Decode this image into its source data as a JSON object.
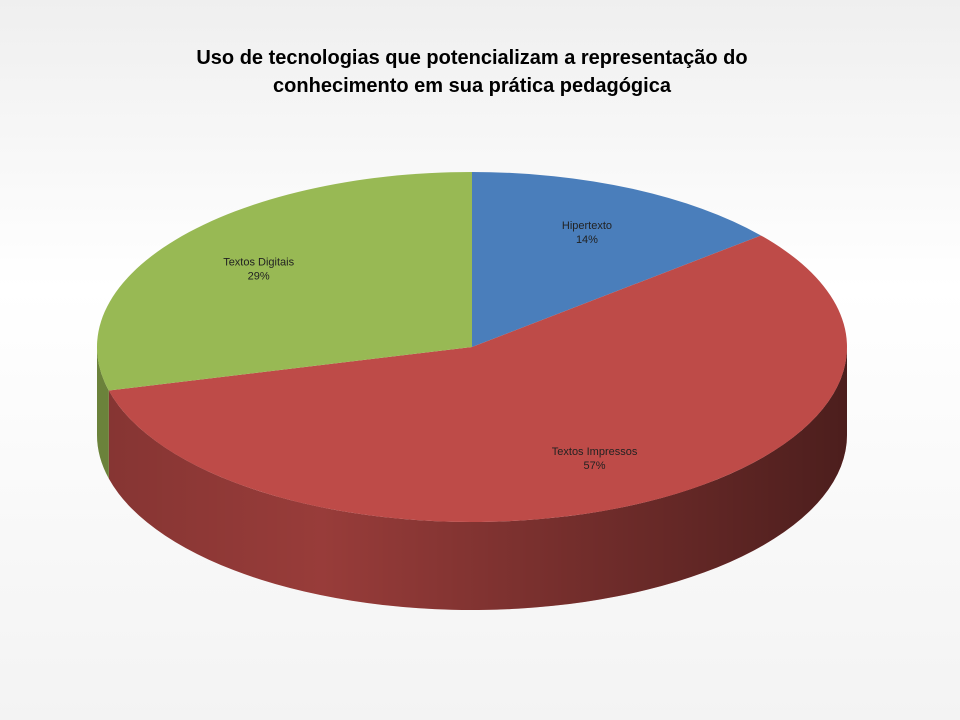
{
  "chart_data": {
    "type": "pie",
    "title": "Uso de tecnologias que potencializam a representação do conhecimento em sua prática pedagógica",
    "categories": [
      "Hipertexto",
      "Textos Impressos",
      "Textos Digitais"
    ],
    "values": [
      14,
      57,
      29
    ],
    "value_labels": [
      "14%",
      "57%",
      "29%"
    ],
    "colors": [
      "#4a7ebb",
      "#be4b48",
      "#98b954"
    ]
  }
}
